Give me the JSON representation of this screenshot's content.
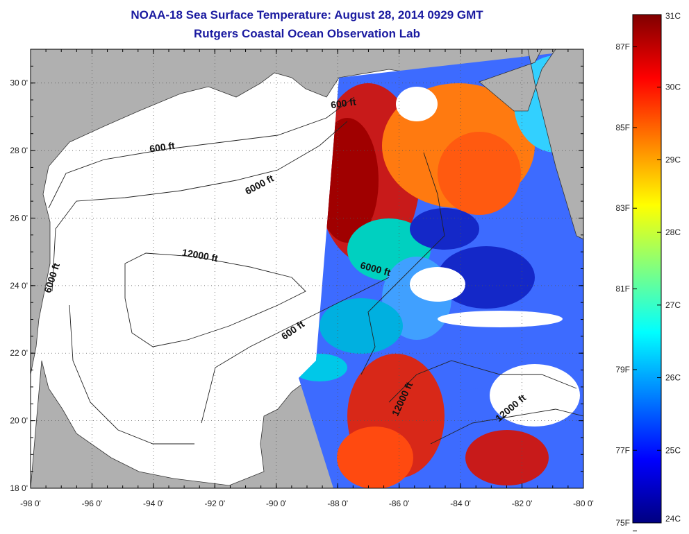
{
  "header": {
    "title": "NOAA-18 Sea Surface Temperature:  August 28, 2014 0929 GMT",
    "subtitle": "Rutgers Coastal Ocean Observation Lab"
  },
  "map": {
    "lon_range": [
      -98,
      -80
    ],
    "lat_range": [
      18,
      31
    ],
    "x_ticks": [
      {
        "value": -98,
        "label": "-98 0'"
      },
      {
        "value": -96,
        "label": "-96 0'"
      },
      {
        "value": -94,
        "label": "-94 0'"
      },
      {
        "value": -92,
        "label": "-92 0'"
      },
      {
        "value": -90,
        "label": "-90 0'"
      },
      {
        "value": -88,
        "label": "-88 0'"
      },
      {
        "value": -86,
        "label": "-86 0'"
      },
      {
        "value": -84,
        "label": "-84 0'"
      },
      {
        "value": -82,
        "label": "-82 0'"
      },
      {
        "value": -80,
        "label": "-80 0'"
      }
    ],
    "y_ticks": [
      {
        "value": 30,
        "label": "30 0'"
      },
      {
        "value": 28,
        "label": "28 0'"
      },
      {
        "value": 26,
        "label": "26 0'"
      },
      {
        "value": 24,
        "label": "24 0'"
      },
      {
        "value": 22,
        "label": "22 0'"
      },
      {
        "value": 20,
        "label": "20 0'"
      },
      {
        "value": 18,
        "label": "18 0'"
      }
    ],
    "contour_labels": [
      {
        "text": "600 ft",
        "lon": -93.7,
        "lat": 28.0,
        "angle": -8
      },
      {
        "text": "600 ft",
        "lon": -87.8,
        "lat": 29.3,
        "angle": -8
      },
      {
        "text": "6000 ft",
        "lon": -90.5,
        "lat": 26.9,
        "angle": -28
      },
      {
        "text": "12000 ft",
        "lon": -92.5,
        "lat": 24.8,
        "angle": 10
      },
      {
        "text": "6000 ft",
        "lon": -97.2,
        "lat": 24.2,
        "angle": -72
      },
      {
        "text": "6000 ft",
        "lon": -86.8,
        "lat": 24.4,
        "angle": 15
      },
      {
        "text": "600 ft",
        "lon": -89.4,
        "lat": 22.6,
        "angle": -35
      },
      {
        "text": "12000 ft",
        "lon": -85.8,
        "lat": 20.6,
        "angle": -65
      },
      {
        "text": "12000 ft",
        "lon": -82.3,
        "lat": 20.3,
        "angle": -40
      }
    ],
    "colors": {
      "land": "#b0b0b0",
      "ocean_nodata": "#ffffff",
      "grid": "#555555"
    }
  },
  "colorbar": {
    "range_c": [
      24,
      31
    ],
    "labels_c": [
      {
        "value": 31,
        "label": "31C"
      },
      {
        "value": 30,
        "label": "30C"
      },
      {
        "value": 29,
        "label": "29C"
      },
      {
        "value": 28,
        "label": "28C"
      },
      {
        "value": 27,
        "label": "27C"
      },
      {
        "value": 26,
        "label": "26C"
      },
      {
        "value": 25,
        "label": "25C"
      },
      {
        "value": 24,
        "label": "24C"
      }
    ],
    "labels_f": [
      {
        "value": 87,
        "label": "87F"
      },
      {
        "value": 85,
        "label": "85F"
      },
      {
        "value": 83,
        "label": "83F"
      },
      {
        "value": 81,
        "label": "81F"
      },
      {
        "value": 79,
        "label": "79F"
      },
      {
        "value": 77,
        "label": "77F"
      },
      {
        "value": 75,
        "label": "75F"
      }
    ],
    "gradient": [
      "#000080",
      "#0000ff",
      "#0080ff",
      "#00ffff",
      "#80ff80",
      "#ffff00",
      "#ff8000",
      "#ff0000",
      "#800000"
    ]
  }
}
